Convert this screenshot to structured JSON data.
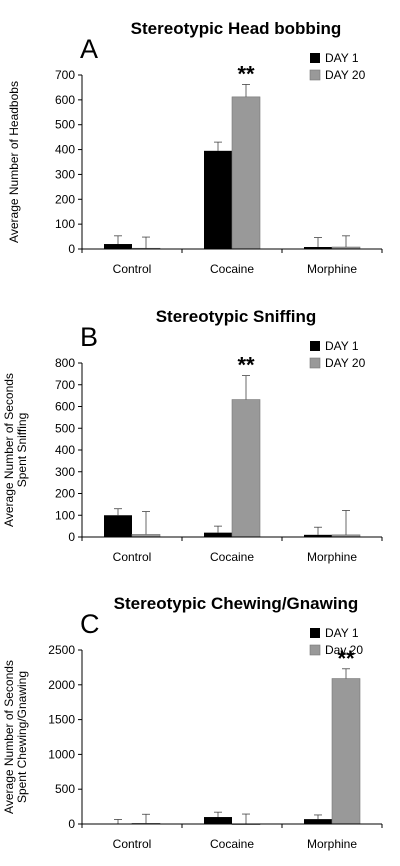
{
  "colors": {
    "day1": "#000000",
    "day20": "#999999",
    "axis": "#000000"
  },
  "chart_data": [
    {
      "type": "bar",
      "panel_letter": "A",
      "title": "Stereotypic Head bobbing",
      "ylabel_lines": [
        "Average Number of Headbobs"
      ],
      "categories": [
        "Control",
        "Cocaine",
        "Morphine"
      ],
      "yticks": [
        "0",
        "100",
        "200",
        "300",
        "400",
        "500",
        "600",
        "700"
      ],
      "ylim": [
        0,
        700
      ],
      "legend_position": "top-right",
      "series": [
        {
          "name": "DAY 1",
          "values": [
            20,
            395,
            8
          ],
          "errors": [
            33,
            35,
            38
          ]
        },
        {
          "name": "DAY 20",
          "values": [
            3,
            612,
            8
          ],
          "errors": [
            45,
            50,
            45
          ]
        }
      ],
      "annotations": [
        {
          "text": "**",
          "category": 1,
          "series": 1
        }
      ]
    },
    {
      "type": "bar",
      "panel_letter": "B",
      "title": "Stereotypic Sniffing",
      "ylabel_lines": [
        "Average Number of Seconds",
        "Spent Sniffing"
      ],
      "categories": [
        "Control",
        "Cocaine",
        "Morphine"
      ],
      "yticks": [
        "0",
        "100",
        "200",
        "300",
        "400",
        "500",
        "600",
        "700",
        "800"
      ],
      "ylim": [
        0,
        800
      ],
      "legend_position": "top-right",
      "series": [
        {
          "name": "DAY 1",
          "values": [
            100,
            20,
            10
          ],
          "errors": [
            30,
            30,
            35
          ]
        },
        {
          "name": "DAY 20",
          "values": [
            12,
            632,
            10
          ],
          "errors": [
            105,
            110,
            112
          ]
        }
      ],
      "annotations": [
        {
          "text": "**",
          "category": 1,
          "series": 1
        }
      ]
    },
    {
      "type": "bar",
      "panel_letter": "C",
      "title": "Stereotypic Chewing/Gnawing",
      "ylabel_lines": [
        "Average Number of Seconds",
        "Spent Chewing/Gnawing"
      ],
      "categories": [
        "Control",
        "Cocaine",
        "Morphine"
      ],
      "yticks": [
        "0",
        "500",
        "1000",
        "1500",
        "2000",
        "2500"
      ],
      "ylim": [
        0,
        2500
      ],
      "legend_position": "top-right",
      "series": [
        {
          "name": "DAY 1",
          "values": [
            5,
            100,
            70
          ],
          "errors": [
            60,
            70,
            60
          ]
        },
        {
          "name": "Day 20",
          "values": [
            10,
            3,
            2090
          ],
          "errors": [
            130,
            140,
            140
          ]
        }
      ],
      "annotations": [
        {
          "text": "**",
          "category": 2,
          "series": 1
        }
      ]
    }
  ]
}
